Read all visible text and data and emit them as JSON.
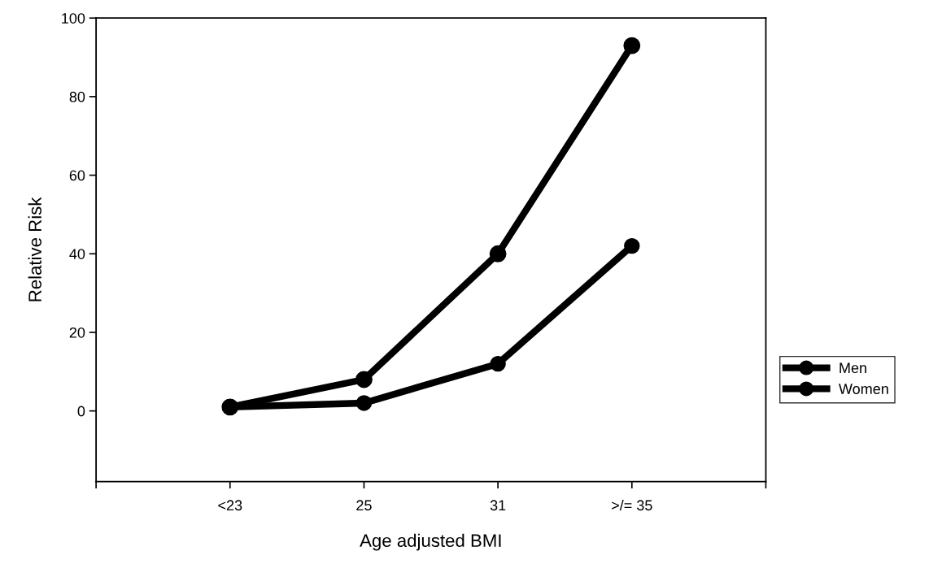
{
  "chart_data": {
    "type": "line",
    "xlabel": "Age adjusted BMI",
    "ylabel": "Relative Risk",
    "categories": [
      "<23",
      "25",
      "31",
      ">/= 35"
    ],
    "series": [
      {
        "name": "Men",
        "color": "#000000",
        "values": [
          1,
          2,
          12,
          42
        ]
      },
      {
        "name": "Women",
        "color": "#000000",
        "values": [
          1,
          8,
          40,
          93
        ]
      }
    ],
    "ylim": [
      -18,
      100
    ],
    "yticks": [
      0,
      20,
      40,
      60,
      80,
      100
    ],
    "grid": false,
    "legend": "right",
    "marker": "circle",
    "line_style": "solid"
  }
}
